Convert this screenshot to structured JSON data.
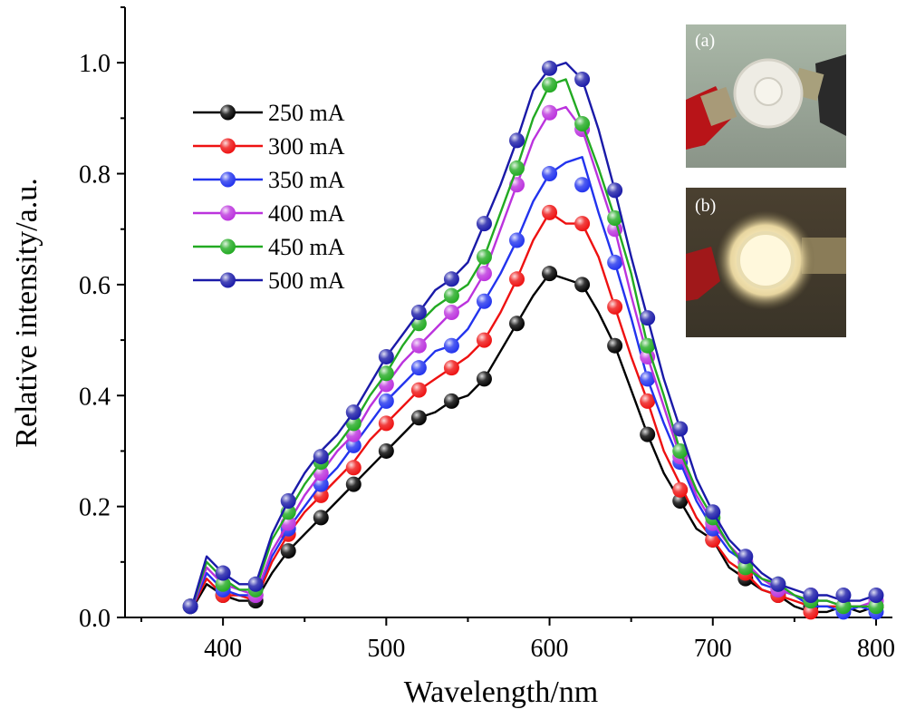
{
  "chart_data": {
    "type": "line",
    "title": "",
    "xlabel": "Wavelength/nm",
    "ylabel": "Relative intensity/a.u.",
    "xlim": [
      340,
      810
    ],
    "ylim": [
      0,
      1.1
    ],
    "xticks": [
      400,
      500,
      600,
      700,
      800
    ],
    "yticks": [
      0.0,
      0.2,
      0.4,
      0.6,
      0.8,
      1.0
    ],
    "ytick_labels": [
      "0.0",
      "0.2",
      "0.4",
      "0.6",
      "0.8",
      "1.0"
    ],
    "grid": false,
    "legend_position": "top-left",
    "marker_x": [
      380,
      400,
      420,
      440,
      460,
      480,
      500,
      520,
      540,
      560,
      580,
      600,
      620,
      640,
      660,
      680,
      700,
      720,
      740,
      760,
      780,
      800
    ],
    "series": [
      {
        "name": "250 mA",
        "color": "#000000",
        "x": [
          380,
          390,
          400,
          410,
          420,
          430,
          440,
          450,
          460,
          470,
          480,
          490,
          500,
          510,
          520,
          530,
          540,
          550,
          560,
          570,
          580,
          590,
          600,
          610,
          620,
          630,
          640,
          650,
          660,
          670,
          680,
          690,
          700,
          710,
          720,
          730,
          740,
          750,
          760,
          770,
          780,
          790,
          800
        ],
        "y": [
          0.01,
          0.06,
          0.04,
          0.03,
          0.03,
          0.08,
          0.12,
          0.15,
          0.18,
          0.21,
          0.24,
          0.27,
          0.3,
          0.33,
          0.36,
          0.37,
          0.39,
          0.4,
          0.43,
          0.48,
          0.53,
          0.58,
          0.62,
          0.61,
          0.6,
          0.55,
          0.49,
          0.41,
          0.33,
          0.26,
          0.21,
          0.16,
          0.14,
          0.09,
          0.07,
          0.05,
          0.04,
          0.02,
          0.01,
          0.01,
          0.02,
          0.01,
          0.02
        ],
        "markers": [
          0.02,
          0.04,
          0.03,
          0.12,
          0.18,
          0.24,
          0.3,
          0.36,
          0.39,
          0.43,
          0.53,
          0.62,
          0.6,
          0.49,
          0.33,
          0.21,
          0.14,
          0.07,
          0.04,
          0.02,
          0.02,
          0.02
        ]
      },
      {
        "name": "300 mA",
        "color": "#ee1111",
        "x": [
          380,
          390,
          400,
          410,
          420,
          430,
          440,
          450,
          460,
          470,
          480,
          490,
          500,
          510,
          520,
          530,
          540,
          550,
          560,
          570,
          580,
          590,
          600,
          610,
          620,
          630,
          640,
          650,
          660,
          670,
          680,
          690,
          700,
          710,
          720,
          730,
          740,
          750,
          760,
          770,
          780,
          790,
          800
        ],
        "y": [
          0.01,
          0.07,
          0.04,
          0.04,
          0.03,
          0.1,
          0.15,
          0.19,
          0.22,
          0.25,
          0.28,
          0.32,
          0.35,
          0.38,
          0.41,
          0.43,
          0.45,
          0.47,
          0.5,
          0.55,
          0.61,
          0.68,
          0.73,
          0.71,
          0.71,
          0.65,
          0.56,
          0.47,
          0.39,
          0.3,
          0.24,
          0.18,
          0.14,
          0.1,
          0.08,
          0.05,
          0.04,
          0.03,
          0.02,
          0.02,
          0.02,
          0.02,
          0.02
        ],
        "markers": [
          0.02,
          0.04,
          0.04,
          0.15,
          0.22,
          0.27,
          0.35,
          0.41,
          0.45,
          0.5,
          0.61,
          0.73,
          0.71,
          0.56,
          0.39,
          0.23,
          0.14,
          0.08,
          0.04,
          0.01,
          0.02,
          0.02
        ]
      },
      {
        "name": "350 mA",
        "color": "#2233ee",
        "x": [
          380,
          390,
          400,
          410,
          420,
          430,
          440,
          450,
          460,
          470,
          480,
          490,
          500,
          510,
          520,
          530,
          540,
          550,
          560,
          570,
          580,
          590,
          600,
          610,
          620,
          630,
          640,
          650,
          660,
          670,
          680,
          690,
          700,
          710,
          720,
          730,
          740,
          750,
          760,
          770,
          780,
          790,
          800
        ],
        "y": [
          0.01,
          0.08,
          0.05,
          0.04,
          0.04,
          0.11,
          0.16,
          0.2,
          0.24,
          0.27,
          0.31,
          0.35,
          0.39,
          0.42,
          0.45,
          0.48,
          0.49,
          0.52,
          0.57,
          0.62,
          0.68,
          0.75,
          0.8,
          0.82,
          0.83,
          0.73,
          0.64,
          0.54,
          0.43,
          0.35,
          0.28,
          0.21,
          0.16,
          0.12,
          0.1,
          0.06,
          0.05,
          0.04,
          0.02,
          0.02,
          0.01,
          0.02,
          0.01
        ],
        "markers": [
          0.02,
          0.05,
          0.04,
          0.16,
          0.24,
          0.31,
          0.39,
          0.45,
          0.49,
          0.57,
          0.68,
          0.8,
          0.78,
          0.64,
          0.43,
          0.28,
          0.16,
          0.1,
          0.05,
          0.03,
          0.01,
          0.01
        ]
      },
      {
        "name": "400 mA",
        "color": "#bb33dd",
        "x": [
          380,
          390,
          400,
          410,
          420,
          430,
          440,
          450,
          460,
          470,
          480,
          490,
          500,
          510,
          520,
          530,
          540,
          550,
          560,
          570,
          580,
          590,
          600,
          610,
          620,
          630,
          640,
          650,
          660,
          670,
          680,
          690,
          700,
          710,
          720,
          730,
          740,
          750,
          760,
          770,
          780,
          790,
          800
        ],
        "y": [
          0.01,
          0.09,
          0.06,
          0.05,
          0.04,
          0.12,
          0.17,
          0.22,
          0.26,
          0.3,
          0.33,
          0.38,
          0.42,
          0.46,
          0.49,
          0.52,
          0.55,
          0.57,
          0.62,
          0.7,
          0.78,
          0.86,
          0.91,
          0.92,
          0.88,
          0.79,
          0.7,
          0.58,
          0.47,
          0.38,
          0.29,
          0.22,
          0.17,
          0.13,
          0.1,
          0.07,
          0.05,
          0.04,
          0.03,
          0.03,
          0.02,
          0.02,
          0.03
        ],
        "markers": [
          0.02,
          0.06,
          0.04,
          0.17,
          0.26,
          0.33,
          0.42,
          0.49,
          0.55,
          0.62,
          0.78,
          0.91,
          0.88,
          0.7,
          0.47,
          0.29,
          0.17,
          0.1,
          0.05,
          0.04,
          0.02,
          0.03
        ]
      },
      {
        "name": "450 mA",
        "color": "#22aa22",
        "x": [
          380,
          390,
          400,
          410,
          420,
          430,
          440,
          450,
          460,
          470,
          480,
          490,
          500,
          510,
          520,
          530,
          540,
          550,
          560,
          570,
          580,
          590,
          600,
          610,
          620,
          630,
          640,
          650,
          660,
          670,
          680,
          690,
          700,
          710,
          720,
          730,
          740,
          750,
          760,
          770,
          780,
          790,
          800
        ],
        "y": [
          0.01,
          0.1,
          0.07,
          0.05,
          0.05,
          0.14,
          0.19,
          0.24,
          0.28,
          0.31,
          0.35,
          0.4,
          0.44,
          0.49,
          0.53,
          0.56,
          0.58,
          0.6,
          0.65,
          0.73,
          0.81,
          0.9,
          0.96,
          0.97,
          0.89,
          0.81,
          0.72,
          0.62,
          0.49,
          0.4,
          0.3,
          0.23,
          0.18,
          0.13,
          0.09,
          0.07,
          0.06,
          0.04,
          0.03,
          0.03,
          0.02,
          0.02,
          0.02
        ],
        "markers": [
          0.02,
          0.06,
          0.05,
          0.19,
          0.28,
          0.35,
          0.44,
          0.53,
          0.58,
          0.65,
          0.81,
          0.96,
          0.89,
          0.72,
          0.49,
          0.3,
          0.18,
          0.09,
          0.06,
          0.03,
          0.02,
          0.02
        ]
      },
      {
        "name": "500 mA",
        "color": "#1a1aa8",
        "x": [
          380,
          390,
          400,
          410,
          420,
          430,
          440,
          450,
          460,
          470,
          480,
          490,
          500,
          510,
          520,
          530,
          540,
          550,
          560,
          570,
          580,
          590,
          600,
          610,
          620,
          630,
          640,
          650,
          660,
          670,
          680,
          690,
          700,
          710,
          720,
          730,
          740,
          750,
          760,
          770,
          780,
          790,
          800
        ],
        "y": [
          0.01,
          0.11,
          0.08,
          0.06,
          0.06,
          0.15,
          0.21,
          0.26,
          0.3,
          0.33,
          0.37,
          0.42,
          0.47,
          0.51,
          0.55,
          0.59,
          0.61,
          0.64,
          0.71,
          0.78,
          0.86,
          0.95,
          0.99,
          1.0,
          0.97,
          0.88,
          0.77,
          0.65,
          0.54,
          0.43,
          0.34,
          0.25,
          0.19,
          0.14,
          0.11,
          0.08,
          0.06,
          0.05,
          0.04,
          0.04,
          0.03,
          0.03,
          0.04
        ],
        "markers": [
          0.02,
          0.08,
          0.06,
          0.21,
          0.29,
          0.37,
          0.47,
          0.55,
          0.61,
          0.71,
          0.86,
          0.99,
          0.97,
          0.77,
          0.54,
          0.34,
          0.19,
          0.11,
          0.06,
          0.04,
          0.04,
          0.04
        ]
      }
    ],
    "insets": [
      {
        "label": "(a)",
        "description_icon": "led-off-photo-icon"
      },
      {
        "label": "(b)",
        "description_icon": "led-on-photo-icon"
      }
    ]
  }
}
